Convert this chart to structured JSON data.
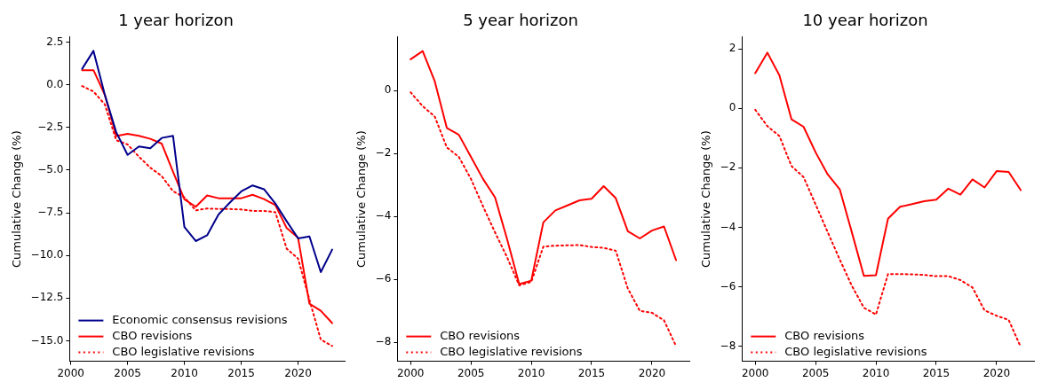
{
  "chart_data": [
    {
      "type": "line",
      "title": "1 year horizon",
      "ylabel": "Cumulative Change (%)",
      "x": [
        2001,
        2002,
        2003,
        2004,
        2005,
        2006,
        2007,
        2008,
        2009,
        2010,
        2011,
        2012,
        2013,
        2014,
        2015,
        2016,
        2017,
        2018,
        2019,
        2020,
        2021,
        2022,
        2023
      ],
      "series": [
        {
          "name": "Economic consensus revisions",
          "color": "#00008b",
          "line_style": "solid",
          "values": [
            0.93,
            1.98,
            -0.6,
            -2.78,
            -4.11,
            -3.62,
            -3.72,
            -3.12,
            -3.0,
            -8.34,
            -9.16,
            -8.82,
            -7.6,
            -6.9,
            -6.25,
            -5.9,
            -6.12,
            -6.96,
            -8.0,
            -9.0,
            -8.89,
            -10.98,
            -9.66
          ]
        },
        {
          "name": "CBO revisions",
          "color": "#ff0000",
          "line_style": "solid",
          "values": [
            0.85,
            0.85,
            -0.6,
            -3.01,
            -2.88,
            -3.0,
            -3.17,
            -3.45,
            -5.1,
            -6.71,
            -7.15,
            -6.49,
            -6.65,
            -6.65,
            -6.65,
            -6.45,
            -6.7,
            -7.05,
            -8.4,
            -8.97,
            -12.83,
            -13.24,
            -13.96
          ]
        },
        {
          "name": "CBO legislative revisions",
          "color": "#ff0000",
          "line_style": "dotted",
          "values": [
            -0.08,
            -0.4,
            -1.16,
            -3.25,
            -3.5,
            -4.22,
            -4.86,
            -5.35,
            -6.24,
            -6.6,
            -7.36,
            -7.25,
            -7.28,
            -7.28,
            -7.31,
            -7.39,
            -7.39,
            -7.47,
            -9.61,
            -10.18,
            -12.6,
            -14.93,
            -15.3
          ]
        }
      ],
      "xlim": [
        1999.9,
        2024.1
      ],
      "xticks": [
        2000,
        2005,
        2010,
        2015,
        2020
      ],
      "ylim": [
        -16.2,
        2.8
      ],
      "yticks": [
        2.5,
        {
          "value": 0,
          "label": "0.0"
        },
        {
          "value": -2.5,
          "label": "−2.5"
        },
        {
          "value": -5,
          "label": "−5.0"
        },
        {
          "value": -7.5,
          "label": "−7.5"
        },
        {
          "value": -10,
          "label": "−10.0"
        },
        {
          "value": -12.5,
          "label": "−12.5"
        },
        {
          "value": -15,
          "label": "−15.0"
        }
      ],
      "grid": false,
      "legend": "bottom left",
      "marker": "none"
    },
    {
      "type": "line",
      "title": "5 year horizon",
      "ylabel": "Cumulative Change (%)",
      "x": [
        2000,
        2001,
        2002,
        2003,
        2004,
        2005,
        2006,
        2007,
        2008,
        2009,
        2010,
        2011,
        2012,
        2013,
        2014,
        2015,
        2016,
        2017,
        2018,
        2019,
        2020,
        2021,
        2022
      ],
      "series": [
        {
          "name": "CBO revisions",
          "color": "#ff0000",
          "line_style": "solid",
          "values": [
            0.99,
            1.25,
            0.29,
            -1.19,
            -1.41,
            -2.11,
            -2.81,
            -3.4,
            -4.73,
            -6.15,
            -6.04,
            -4.19,
            -3.81,
            -3.65,
            -3.49,
            -3.44,
            -3.04,
            -3.42,
            -4.47,
            -4.7,
            -4.45,
            -4.32,
            -5.39
          ]
        },
        {
          "name": "CBO legislative revisions",
          "color": "#ff0000",
          "line_style": "dotted",
          "values": [
            -0.06,
            -0.5,
            -0.83,
            -1.81,
            -2.11,
            -2.81,
            -3.68,
            -4.51,
            -5.3,
            -6.19,
            -6.08,
            -4.96,
            -4.93,
            -4.92,
            -4.91,
            -4.97,
            -5.0,
            -5.09,
            -6.29,
            -7.0,
            -7.06,
            -7.3,
            -8.12
          ]
        }
      ],
      "xlim": [
        1998.9,
        2023.1
      ],
      "xticks": [
        2000,
        2005,
        2010,
        2015,
        2020
      ],
      "ylim": [
        -8.6,
        1.7
      ],
      "yticks": [
        0,
        {
          "value": -2,
          "label": "−2"
        },
        {
          "value": -4,
          "label": "−4"
        },
        {
          "value": -6,
          "label": "−6"
        },
        {
          "value": -8,
          "label": "−8"
        }
      ],
      "grid": false,
      "legend": "bottom left",
      "marker": "none"
    },
    {
      "type": "line",
      "title": "10 year horizon",
      "ylabel": "Cumulative Change (%)",
      "x": [
        2000,
        2001,
        2002,
        2003,
        2004,
        2005,
        2006,
        2007,
        2008,
        2009,
        2010,
        2011,
        2012,
        2013,
        2014,
        2015,
        2016,
        2017,
        2018,
        2019,
        2020,
        2021,
        2022
      ],
      "series": [
        {
          "name": "CBO revisions",
          "color": "#ff0000",
          "line_style": "solid",
          "values": [
            1.18,
            1.87,
            1.11,
            -0.37,
            -0.62,
            -1.48,
            -2.22,
            -2.72,
            -4.16,
            -5.63,
            -5.61,
            -3.71,
            -3.31,
            -3.22,
            -3.12,
            -3.07,
            -2.7,
            -2.9,
            -2.39,
            -2.66,
            -2.11,
            -2.14,
            -2.75
          ]
        },
        {
          "name": "CBO legislative revisions",
          "color": "#ff0000",
          "line_style": "dotted",
          "values": [
            -0.05,
            -0.6,
            -0.93,
            -1.94,
            -2.31,
            -3.23,
            -4.16,
            -5.08,
            -5.96,
            -6.7,
            -6.93,
            -5.57,
            -5.57,
            -5.58,
            -5.6,
            -5.64,
            -5.64,
            -5.77,
            -6.02,
            -6.79,
            -6.97,
            -7.11,
            -8.02
          ]
        }
      ],
      "xlim": [
        1998.9,
        2023.1
      ],
      "xticks": [
        2000,
        2005,
        2010,
        2015,
        2020
      ],
      "ylim": [
        -8.5,
        2.4
      ],
      "yticks": [
        2,
        0,
        {
          "value": -2,
          "label": "−2"
        },
        {
          "value": -4,
          "label": "−4"
        },
        {
          "value": -6,
          "label": "−6"
        },
        {
          "value": -8,
          "label": "−8"
        }
      ],
      "grid": false,
      "legend": "bottom left",
      "marker": "none"
    }
  ]
}
